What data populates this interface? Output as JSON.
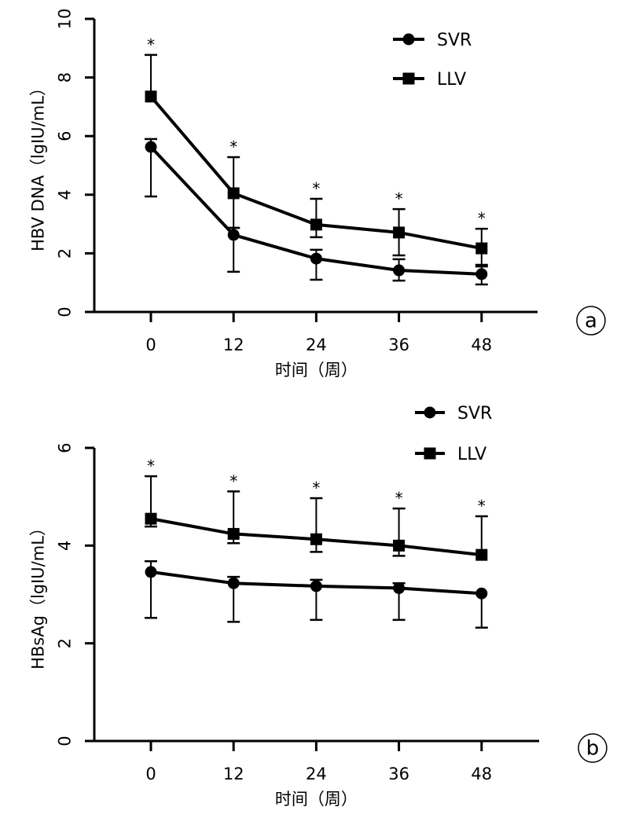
{
  "chart_data": [
    {
      "type": "line",
      "panel_label": "a",
      "title": "",
      "xlabel": "时间（周）",
      "ylabel": "HBV DNA（lgIU/mL）",
      "x": [
        0,
        12,
        24,
        36,
        48
      ],
      "x_tick_labels": [
        "0",
        "12",
        "24",
        "36",
        "48"
      ],
      "y_ticks": [
        0,
        2,
        4,
        6,
        8,
        10
      ],
      "y_tick_labels": [
        "0",
        "2",
        "4",
        "6",
        "8",
        "10"
      ],
      "ylim": [
        0,
        10
      ],
      "grid": false,
      "legend_position": "top-right",
      "significance_marks": [
        "*",
        "*",
        "*",
        "*",
        "*"
      ],
      "series": [
        {
          "name": "SVR",
          "marker": "circle",
          "values": [
            5.63,
            2.63,
            1.82,
            1.42,
            1.29
          ],
          "error_upper": [
            5.9,
            2.87,
            2.12,
            1.8,
            1.55
          ],
          "error_lower": [
            3.94,
            1.37,
            1.1,
            1.07,
            0.94
          ]
        },
        {
          "name": "LLV",
          "marker": "square",
          "values": [
            7.35,
            4.05,
            2.98,
            2.71,
            2.17
          ],
          "error_upper": [
            8.77,
            5.28,
            3.86,
            3.51,
            2.84
          ],
          "error_lower": [
            null,
            2.87,
            2.55,
            1.93,
            1.61
          ]
        }
      ]
    },
    {
      "type": "line",
      "panel_label": "b",
      "title": "",
      "xlabel": "时间（周）",
      "ylabel": "HBsAg（lgIU/mL）",
      "x": [
        0,
        12,
        24,
        36,
        48
      ],
      "x_tick_labels": [
        "0",
        "12",
        "24",
        "36",
        "48"
      ],
      "y_ticks": [
        0,
        2,
        4,
        6
      ],
      "y_tick_labels": [
        "0",
        "2",
        "4",
        "6"
      ],
      "ylim": [
        0,
        6
      ],
      "grid": false,
      "legend_position": "top-right",
      "significance_marks": [
        "*",
        "*",
        "*",
        "*",
        "*"
      ],
      "series": [
        {
          "name": "SVR",
          "marker": "circle",
          "values": [
            3.46,
            3.23,
            3.17,
            3.13,
            3.02
          ],
          "error_upper": [
            3.68,
            3.36,
            3.3,
            3.23,
            null
          ],
          "error_lower": [
            2.52,
            2.44,
            2.48,
            2.48,
            2.32
          ]
        },
        {
          "name": "LLV",
          "marker": "square",
          "values": [
            4.55,
            4.24,
            4.13,
            4.0,
            3.81
          ],
          "error_upper": [
            5.42,
            5.11,
            4.97,
            4.76,
            4.6
          ],
          "error_lower": [
            4.39,
            4.05,
            3.87,
            3.79,
            null
          ]
        }
      ]
    }
  ]
}
